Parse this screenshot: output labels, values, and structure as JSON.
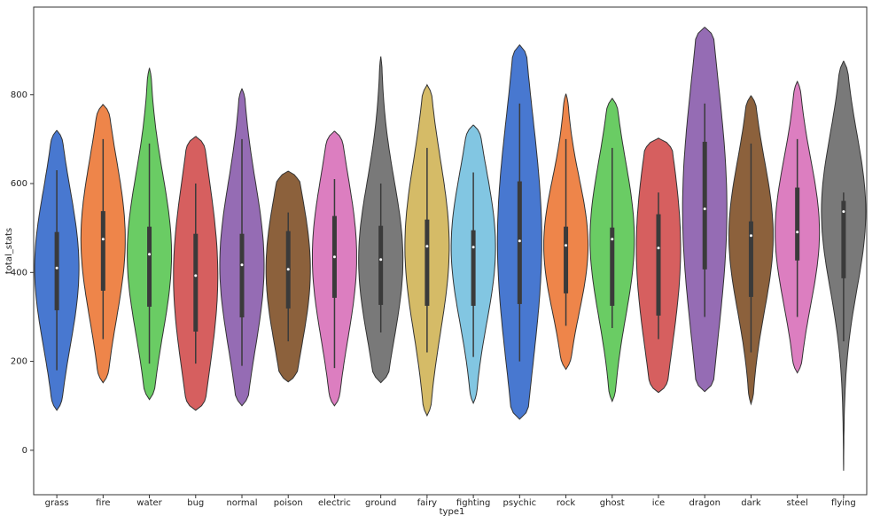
{
  "chart_data": {
    "type": "violin",
    "xlabel": "type1",
    "ylabel": "total_stats",
    "categories": [
      "grass",
      "fire",
      "water",
      "bug",
      "normal",
      "poison",
      "electric",
      "ground",
      "fairy",
      "fighting",
      "psychic",
      "rock",
      "ghost",
      "ice",
      "dragon",
      "dark",
      "steel",
      "flying"
    ],
    "colors": [
      "#4878d0",
      "#ee854a",
      "#6acc64",
      "#d65f5f",
      "#956cb4",
      "#8c613c",
      "#dc7ec0",
      "#797979",
      "#d5bb67",
      "#82c6e2",
      "#4878d0",
      "#ee854a",
      "#6acc64",
      "#d65f5f",
      "#956cb4",
      "#8c613c",
      "#dc7ec0",
      "#797979"
    ],
    "min": [
      90,
      152,
      114,
      90,
      100,
      154,
      100,
      152,
      78,
      106,
      70,
      182,
      110,
      130,
      132,
      104,
      174,
      -46
    ],
    "max": [
      720,
      778,
      860,
      706,
      814,
      628,
      718,
      886,
      822,
      732,
      912,
      802,
      792,
      702,
      952,
      798,
      830,
      876
    ],
    "whisker_low": [
      180,
      250,
      195,
      195,
      190,
      245,
      185,
      265,
      220,
      210,
      200,
      280,
      275,
      250,
      300,
      220,
      300,
      245
    ],
    "whisker_high": [
      630,
      700,
      690,
      600,
      700,
      535,
      610,
      600,
      680,
      625,
      780,
      700,
      680,
      580,
      780,
      690,
      700,
      580
    ],
    "q1": [
      315,
      359,
      323,
      267,
      299,
      319,
      343,
      327,
      325,
      325,
      329,
      353,
      325,
      303,
      407,
      345,
      427,
      387
    ],
    "median": [
      410,
      475,
      441,
      393,
      417,
      407,
      435,
      429,
      459,
      457,
      471,
      461,
      475,
      455,
      543,
      483,
      491,
      537
    ],
    "q3": [
      491,
      538,
      503,
      487,
      487,
      493,
      527,
      505,
      519,
      495,
      605,
      503,
      501,
      531,
      694,
      515,
      591,
      561
    ],
    "ylim": [
      -100,
      997
    ],
    "yticks": [
      0,
      200,
      400,
      600,
      800
    ]
  }
}
